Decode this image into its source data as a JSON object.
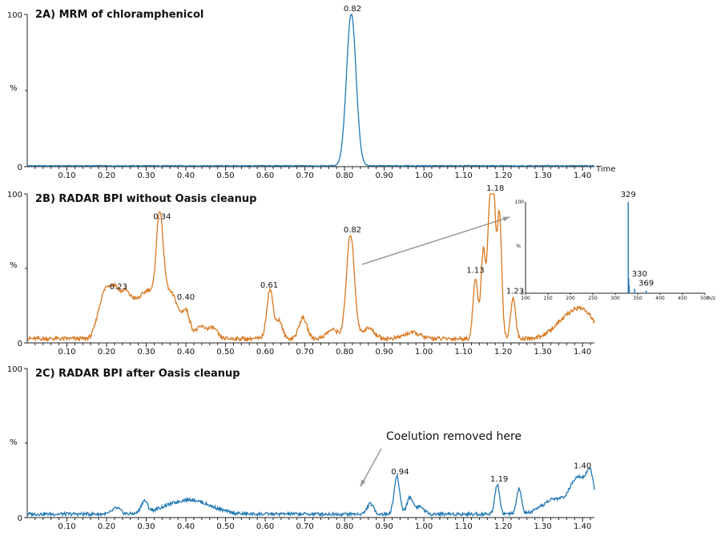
{
  "figure_name": "chromatograms-figure",
  "colors": {
    "blue": "#1f77b4",
    "orange": "#d9771e",
    "axis": "#222222",
    "arrow": "#9a9a9a"
  },
  "chart_data": [
    {
      "type": "line",
      "id": "2A",
      "title": "2A) MRM of chloramphenicol",
      "ylabel": "%",
      "xlabel": "Time",
      "xlim": [
        0.0,
        1.43
      ],
      "ylim": [
        0,
        100
      ],
      "yticks": [
        0,
        100
      ],
      "xticks": [
        0.1,
        0.2,
        0.3,
        0.4,
        0.5,
        0.6,
        0.7,
        0.8,
        0.9,
        1.0,
        1.1,
        1.2,
        1.3,
        1.4
      ],
      "color": "blue",
      "peak_labels": [
        {
          "x": 0.82,
          "y": 100,
          "text": "0.82"
        }
      ],
      "baseline": 0.6,
      "peaks": [
        {
          "x": 0.817,
          "h": 100,
          "w": 0.012
        }
      ]
    },
    {
      "type": "line",
      "id": "2B",
      "title": "2B) RADAR BPI without Oasis cleanup",
      "ylabel": "%",
      "xlabel": "",
      "xlim": [
        0.0,
        1.43
      ],
      "ylim": [
        0,
        100
      ],
      "yticks": [
        0,
        100
      ],
      "xticks": [
        0.1,
        0.2,
        0.3,
        0.4,
        0.5,
        0.6,
        0.7,
        0.8,
        0.9,
        1.0,
        1.1,
        1.2,
        1.3,
        1.4
      ],
      "color": "orange",
      "peak_labels": [
        {
          "x": 0.23,
          "y": 34,
          "text": "0.23"
        },
        {
          "x": 0.34,
          "y": 81,
          "text": "0.34"
        },
        {
          "x": 0.4,
          "y": 27,
          "text": "0.40"
        },
        {
          "x": 0.61,
          "y": 35,
          "text": "0.61"
        },
        {
          "x": 0.82,
          "y": 72,
          "text": "0.82"
        },
        {
          "x": 1.13,
          "y": 45,
          "text": "1.13"
        },
        {
          "x": 1.18,
          "y": 100,
          "text": "1.18"
        },
        {
          "x": 1.23,
          "y": 31,
          "text": "1.23"
        }
      ],
      "baseline": 3,
      "peaks": [
        {
          "x": 0.185,
          "h": 18,
          "w": 0.012
        },
        {
          "x": 0.205,
          "h": 28,
          "w": 0.012
        },
        {
          "x": 0.225,
          "h": 25,
          "w": 0.01
        },
        {
          "x": 0.245,
          "h": 24,
          "w": 0.01
        },
        {
          "x": 0.265,
          "h": 22,
          "w": 0.012
        },
        {
          "x": 0.29,
          "h": 24,
          "w": 0.012
        },
        {
          "x": 0.31,
          "h": 24,
          "w": 0.01
        },
        {
          "x": 0.333,
          "h": 75,
          "w": 0.009
        },
        {
          "x": 0.35,
          "h": 25,
          "w": 0.012
        },
        {
          "x": 0.372,
          "h": 22,
          "w": 0.012
        },
        {
          "x": 0.4,
          "h": 18,
          "w": 0.01
        },
        {
          "x": 0.44,
          "h": 8,
          "w": 0.015
        },
        {
          "x": 0.47,
          "h": 6,
          "w": 0.01
        },
        {
          "x": 0.612,
          "h": 33,
          "w": 0.008
        },
        {
          "x": 0.635,
          "h": 12,
          "w": 0.008
        },
        {
          "x": 0.695,
          "h": 14,
          "w": 0.01
        },
        {
          "x": 0.77,
          "h": 6,
          "w": 0.015
        },
        {
          "x": 0.815,
          "h": 70,
          "w": 0.01
        },
        {
          "x": 0.86,
          "h": 7,
          "w": 0.015
        },
        {
          "x": 0.97,
          "h": 4,
          "w": 0.02
        },
        {
          "x": 1.13,
          "h": 40,
          "w": 0.006
        },
        {
          "x": 1.15,
          "h": 60,
          "w": 0.006
        },
        {
          "x": 1.165,
          "h": 75,
          "w": 0.005
        },
        {
          "x": 1.175,
          "h": 100,
          "w": 0.005
        },
        {
          "x": 1.19,
          "h": 85,
          "w": 0.006
        },
        {
          "x": 1.225,
          "h": 28,
          "w": 0.006
        },
        {
          "x": 1.35,
          "h": 9,
          "w": 0.03
        },
        {
          "x": 1.4,
          "h": 18,
          "w": 0.03
        }
      ]
    },
    {
      "type": "line",
      "id": "2C",
      "title": "2C) RADAR BPI after Oasis cleanup",
      "ylabel": "%",
      "xlabel": "",
      "xlim": [
        0.0,
        1.43
      ],
      "ylim": [
        0,
        100
      ],
      "yticks": [
        0,
        100
      ],
      "xticks": [
        0.1,
        0.2,
        0.3,
        0.4,
        0.5,
        0.6,
        0.7,
        0.8,
        0.9,
        1.0,
        1.1,
        1.2,
        1.3,
        1.4
      ],
      "color": "blue",
      "peak_labels": [
        {
          "x": 0.94,
          "y": 27,
          "text": "0.94"
        },
        {
          "x": 1.19,
          "y": 22,
          "text": "1.19"
        },
        {
          "x": 1.4,
          "y": 31,
          "text": "1.40"
        }
      ],
      "baseline": 2.5,
      "peaks": [
        {
          "x": 0.225,
          "h": 4,
          "w": 0.01
        },
        {
          "x": 0.295,
          "h": 8,
          "w": 0.008
        },
        {
          "x": 0.37,
          "h": 6,
          "w": 0.04
        },
        {
          "x": 0.42,
          "h": 6,
          "w": 0.03
        },
        {
          "x": 0.47,
          "h": 3,
          "w": 0.03
        },
        {
          "x": 0.865,
          "h": 7,
          "w": 0.008
        },
        {
          "x": 0.932,
          "h": 25,
          "w": 0.007
        },
        {
          "x": 0.965,
          "h": 11,
          "w": 0.008
        },
        {
          "x": 0.99,
          "h": 5,
          "w": 0.01
        },
        {
          "x": 1.185,
          "h": 20,
          "w": 0.006
        },
        {
          "x": 1.24,
          "h": 17,
          "w": 0.006
        },
        {
          "x": 1.33,
          "h": 10,
          "w": 0.03
        },
        {
          "x": 1.39,
          "h": 24,
          "w": 0.02
        },
        {
          "x": 1.42,
          "h": 22,
          "w": 0.01
        }
      ]
    }
  ],
  "inset": {
    "type": "bar",
    "ylabel": "%",
    "yticks": [
      0,
      100
    ],
    "xlim": [
      100,
      500
    ],
    "xticks": [
      100,
      150,
      200,
      250,
      300,
      350,
      400,
      450,
      500
    ],
    "xunit": "m/z",
    "peaks": [
      {
        "x": 329,
        "y": 100
      },
      {
        "x": 330,
        "y": 16
      },
      {
        "x": 331,
        "y": 9
      },
      {
        "x": 343,
        "y": 5
      },
      {
        "x": 369,
        "y": 3
      }
    ],
    "labels": [
      {
        "x": 329,
        "text": "329"
      },
      {
        "x": 330,
        "text": "330"
      },
      {
        "x": 369,
        "text": "369"
      }
    ]
  },
  "annotation": {
    "text": "Coelution removed here"
  }
}
